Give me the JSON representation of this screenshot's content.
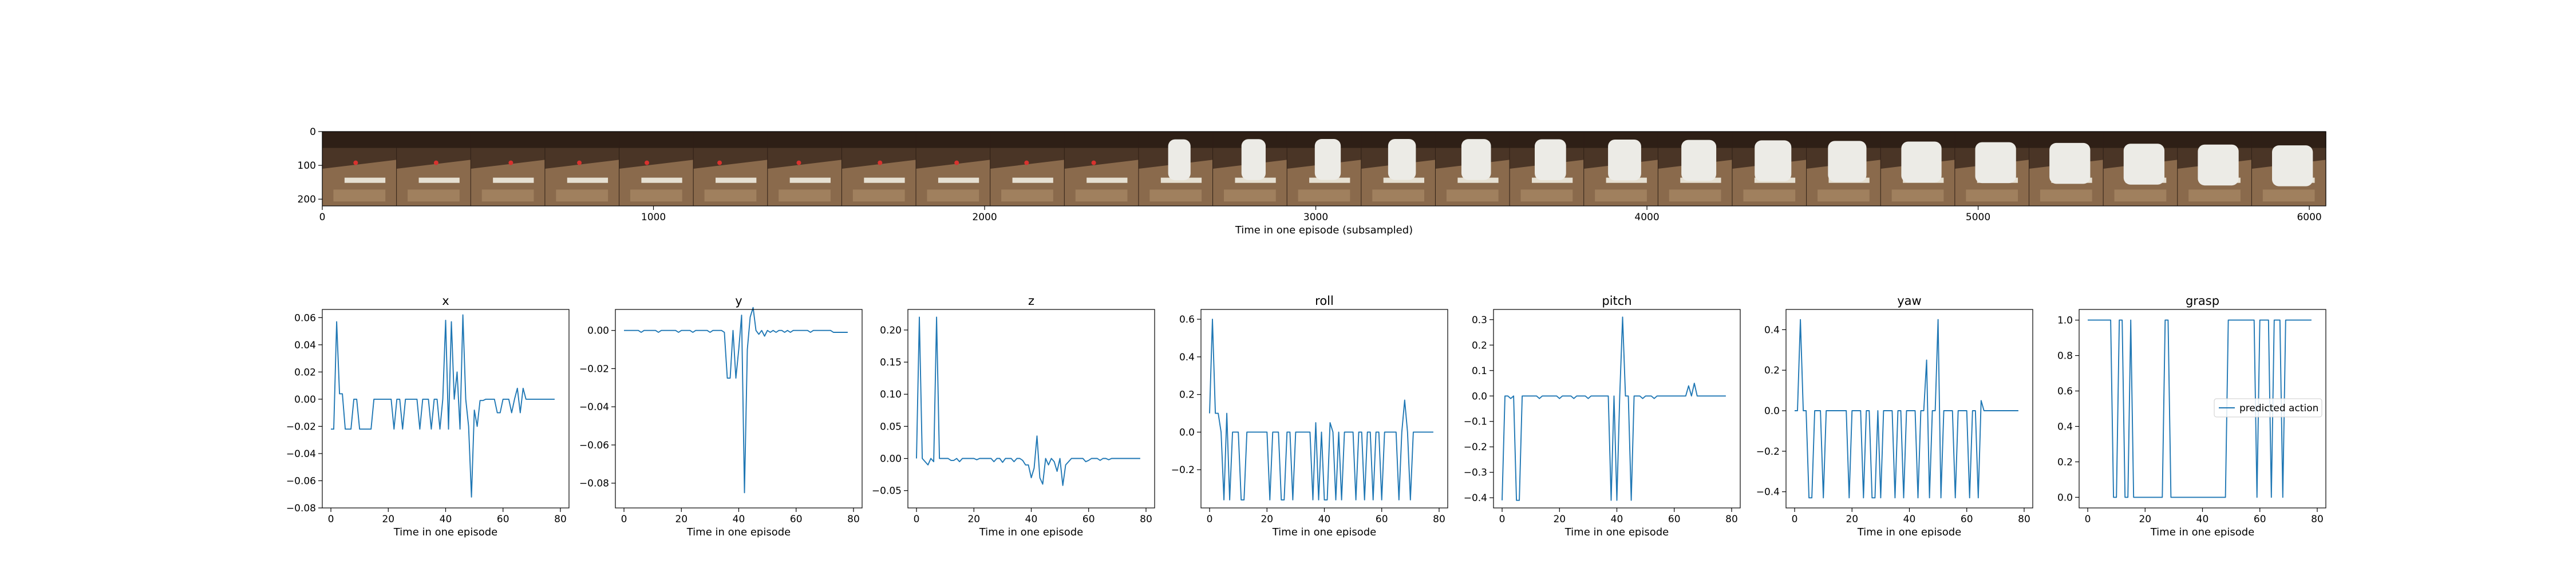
{
  "filmstrip": {
    "xlabel": "Time in one episode (subsampled)",
    "xticks": [
      0,
      1000,
      2000,
      3000,
      4000,
      5000,
      6000
    ],
    "yticks": [
      0,
      100,
      200
    ],
    "xlim": [
      0,
      6050
    ],
    "ylim": [
      0,
      220
    ],
    "frame_count": 27,
    "colors": {
      "wall": "#4a3526",
      "wall_dark": "#2e1f16",
      "floor": "#8a6a4c",
      "floor_light": "#a0805e",
      "tray": "#e6e0d2",
      "bottle": "#ecebe6",
      "marker": "#d8322e"
    }
  },
  "chart_data": [
    {
      "type": "line",
      "title": "x",
      "xlabel": "Time in one episode",
      "xlim": [
        -3,
        83
      ],
      "ylim": [
        -0.08,
        0.066
      ],
      "yticks": [
        0.06,
        0.04,
        0.02,
        0.0,
        -0.02,
        -0.04,
        -0.06,
        -0.08
      ],
      "ytick_labels": [
        "0.06",
        "0.04",
        "0.02",
        "0.00",
        "−0.02",
        "−0.04",
        "−0.06",
        "−0.08"
      ],
      "xticks": [
        0,
        20,
        40,
        60,
        80
      ],
      "series": [
        {
          "values": [
            -0.022,
            -0.022,
            0.057,
            0.004,
            0.004,
            -0.022,
            -0.022,
            -0.022,
            0.0,
            0.0,
            -0.022,
            -0.022,
            -0.022,
            -0.022,
            -0.022,
            0.0,
            0.0,
            0.0,
            0.0,
            0.0,
            0.0,
            0.0,
            -0.022,
            0.0,
            0.0,
            -0.022,
            0.0,
            0.0,
            0.0,
            0.0,
            0.0,
            -0.022,
            0.0,
            0.0,
            0.0,
            -0.022,
            0.0,
            0.0,
            -0.022,
            0.0,
            0.058,
            -0.022,
            0.057,
            0.0,
            0.02,
            -0.022,
            0.062,
            0.0,
            -0.02,
            -0.072,
            -0.008,
            -0.02,
            -0.001,
            -0.001,
            0.0,
            0.0,
            0.0,
            0.0,
            -0.01,
            -0.01,
            0.0,
            0.0,
            0.0,
            -0.01,
            0.0,
            0.008,
            -0.01,
            0.008,
            0.0,
            0.0,
            0.0,
            0.0,
            0.0,
            0.0,
            0.0,
            0.0,
            0.0,
            0.0,
            0.0
          ]
        }
      ]
    },
    {
      "type": "line",
      "title": "y",
      "xlabel": "Time in one episode",
      "xlim": [
        -3,
        83
      ],
      "ylim": [
        -0.093,
        0.011
      ],
      "yticks": [
        0.0,
        -0.02,
        -0.04,
        -0.06,
        -0.08
      ],
      "ytick_labels": [
        "0.00",
        "−0.02",
        "−0.04",
        "−0.06",
        "−0.08"
      ],
      "xticks": [
        0,
        20,
        40,
        60,
        80
      ],
      "series": [
        {
          "values": [
            0.0,
            0.0,
            0.0,
            0.0,
            0.0,
            0.0,
            -0.001,
            0.0,
            0.0,
            0.0,
            0.0,
            0.0,
            -0.001,
            0.0,
            0.0,
            0.0,
            0.0,
            0.0,
            0.0,
            -0.001,
            0.0,
            0.0,
            0.0,
            0.0,
            -0.001,
            0.0,
            0.0,
            0.0,
            0.0,
            0.0,
            -0.001,
            0.0,
            0.0,
            0.0,
            0.0,
            -0.001,
            -0.025,
            -0.025,
            0.0,
            -0.025,
            -0.01,
            0.008,
            -0.085,
            -0.01,
            0.007,
            0.012,
            0.0,
            -0.002,
            0.0,
            -0.003,
            0.0,
            -0.001,
            0.0,
            -0.001,
            0.0,
            0.0,
            -0.001,
            0.0,
            -0.001,
            0.0,
            0.0,
            0.0,
            0.0,
            0.0,
            0.0,
            -0.001,
            0.0,
            0.0,
            0.0,
            0.0,
            0.0,
            0.0,
            0.0,
            -0.001,
            -0.001,
            -0.001,
            -0.001,
            -0.001,
            -0.001
          ]
        }
      ]
    },
    {
      "type": "line",
      "title": "z",
      "xlabel": "Time in one episode",
      "xlim": [
        -3,
        83
      ],
      "ylim": [
        -0.077,
        0.232
      ],
      "yticks": [
        0.2,
        0.15,
        0.1,
        0.05,
        0.0,
        -0.05
      ],
      "ytick_labels": [
        "0.20",
        "0.15",
        "0.10",
        "0.05",
        "0.00",
        "−0.05"
      ],
      "xticks": [
        0,
        20,
        40,
        60,
        80
      ],
      "series": [
        {
          "values": [
            0.0,
            0.22,
            0.0,
            -0.005,
            -0.01,
            0.0,
            -0.005,
            0.22,
            0.0,
            0.0,
            0.0,
            0.0,
            -0.003,
            -0.003,
            0.0,
            -0.005,
            0.0,
            0.0,
            0.0,
            0.0,
            0.0,
            -0.002,
            0.0,
            0.0,
            0.0,
            0.0,
            0.0,
            -0.005,
            0.0,
            0.0,
            -0.006,
            0.0,
            0.0,
            0.0,
            -0.005,
            0.0,
            0.0,
            -0.003,
            -0.01,
            -0.01,
            -0.03,
            -0.015,
            0.035,
            -0.03,
            -0.04,
            0.0,
            -0.01,
            0.0,
            -0.005,
            -0.02,
            0.0,
            -0.042,
            -0.01,
            -0.005,
            0.0,
            0.0,
            0.0,
            0.0,
            0.0,
            -0.005,
            -0.003,
            0.0,
            0.0,
            0.0,
            -0.003,
            0.0,
            0.0,
            -0.002,
            0.0,
            0.0,
            0.0,
            0.0,
            0.0,
            0.0,
            0.0,
            0.0,
            0.0,
            0.0,
            0.0
          ]
        }
      ]
    },
    {
      "type": "line",
      "title": "roll",
      "xlabel": "Time in one episode",
      "xlim": [
        -3,
        83
      ],
      "ylim": [
        -0.403,
        0.652
      ],
      "yticks": [
        0.6,
        0.4,
        0.2,
        0.0,
        -0.2
      ],
      "ytick_labels": [
        "0.6",
        "0.4",
        "0.2",
        "0.0",
        "−0.2"
      ],
      "xticks": [
        0,
        20,
        40,
        60,
        80
      ],
      "series": [
        {
          "values": [
            0.1,
            0.6,
            0.1,
            0.1,
            0.0,
            -0.36,
            0.1,
            -0.36,
            0.0,
            0.0,
            0.0,
            -0.36,
            -0.36,
            0.0,
            0.0,
            0.0,
            0.0,
            0.0,
            0.0,
            0.0,
            0.0,
            -0.36,
            0.0,
            0.0,
            0.0,
            -0.36,
            -0.36,
            0.0,
            0.0,
            -0.36,
            0.0,
            0.0,
            0.0,
            0.0,
            0.0,
            0.0,
            -0.36,
            0.05,
            -0.36,
            0.0,
            -0.36,
            -0.36,
            0.05,
            0.0,
            -0.36,
            0.0,
            -0.36,
            0.0,
            0.0,
            0.0,
            0.0,
            -0.36,
            0.0,
            0.0,
            -0.36,
            0.0,
            0.0,
            -0.36,
            0.0,
            0.0,
            -0.36,
            0.0,
            0.0,
            0.0,
            0.0,
            0.0,
            -0.36,
            0.0,
            0.17,
            0.0,
            -0.36,
            0.0,
            0.0,
            0.0,
            0.0,
            0.0,
            0.0,
            0.0,
            0.0
          ]
        }
      ]
    },
    {
      "type": "line",
      "title": "pitch",
      "xlabel": "Time in one episode",
      "xlim": [
        -3,
        83
      ],
      "ylim": [
        -0.44,
        0.34
      ],
      "yticks": [
        0.3,
        0.2,
        0.1,
        0.0,
        -0.1,
        -0.2,
        -0.3,
        -0.4
      ],
      "ytick_labels": [
        "0.3",
        "0.2",
        "0.1",
        "0.0",
        "−0.1",
        "−0.2",
        "−0.3",
        "−0.4"
      ],
      "xticks": [
        0,
        20,
        40,
        60,
        80
      ],
      "series": [
        {
          "values": [
            -0.41,
            0.0,
            0.0,
            -0.01,
            0.0,
            -0.41,
            -0.41,
            0.0,
            0.0,
            0.0,
            0.0,
            0.0,
            0.0,
            -0.01,
            0.0,
            0.0,
            0.0,
            0.0,
            0.0,
            0.0,
            -0.01,
            0.0,
            0.0,
            0.0,
            0.0,
            -0.01,
            0.0,
            0.0,
            0.0,
            0.0,
            -0.01,
            0.0,
            0.0,
            0.0,
            0.0,
            0.0,
            0.0,
            0.0,
            -0.41,
            0.0,
            -0.41,
            0.0,
            0.31,
            0.0,
            0.0,
            -0.41,
            0.0,
            0.0,
            0.0,
            -0.01,
            0.0,
            0.0,
            0.0,
            -0.01,
            0.0,
            0.0,
            0.0,
            0.0,
            0.0,
            0.0,
            0.0,
            0.0,
            0.0,
            0.0,
            0.0,
            0.04,
            0.0,
            0.05,
            0.0,
            0.0,
            0.0,
            0.0,
            0.0,
            0.0,
            0.0,
            0.0,
            0.0,
            0.0,
            0.0
          ]
        }
      ]
    },
    {
      "type": "line",
      "title": "yaw",
      "xlabel": "Time in one episode",
      "xlim": [
        -3,
        83
      ],
      "ylim": [
        -0.48,
        0.5
      ],
      "yticks": [
        0.4,
        0.2,
        0.0,
        -0.2,
        -0.4
      ],
      "ytick_labels": [
        "0.4",
        "0.2",
        "0.0",
        "−0.2",
        "−0.4"
      ],
      "xticks": [
        0,
        20,
        40,
        60,
        80
      ],
      "series": [
        {
          "values": [
            0.0,
            0.0,
            0.45,
            0.0,
            0.0,
            -0.43,
            -0.43,
            0.0,
            0.0,
            0.0,
            -0.43,
            0.0,
            0.0,
            0.0,
            0.0,
            0.0,
            0.0,
            0.0,
            0.0,
            -0.43,
            0.0,
            0.0,
            0.0,
            0.0,
            -0.43,
            0.0,
            0.0,
            -0.43,
            -0.43,
            0.0,
            -0.43,
            0.0,
            0.0,
            0.0,
            0.0,
            -0.43,
            0.0,
            0.0,
            -0.43,
            0.0,
            0.0,
            0.0,
            0.0,
            -0.43,
            0.0,
            0.0,
            0.25,
            -0.43,
            0.0,
            0.0,
            0.45,
            -0.43,
            0.0,
            0.0,
            0.0,
            0.0,
            -0.43,
            0.0,
            0.0,
            0.0,
            0.0,
            -0.43,
            0.0,
            0.0,
            -0.43,
            0.05,
            0.0,
            0.0,
            0.0,
            0.0,
            0.0,
            0.0,
            0.0,
            0.0,
            0.0,
            0.0,
            0.0,
            0.0,
            0.0
          ]
        }
      ]
    },
    {
      "type": "line",
      "title": "grasp",
      "xlabel": "Time in one episode",
      "xlim": [
        -3,
        83
      ],
      "ylim": [
        -0.06,
        1.06
      ],
      "yticks": [
        1.0,
        0.8,
        0.6,
        0.4,
        0.2,
        0.0
      ],
      "ytick_labels": [
        "1.0",
        "0.8",
        "0.6",
        "0.4",
        "0.2",
        "0.0"
      ],
      "xticks": [
        0,
        20,
        40,
        60,
        80
      ],
      "series": [
        {
          "name": "predicted action",
          "values": [
            1.0,
            1.0,
            1.0,
            1.0,
            1.0,
            1.0,
            1.0,
            1.0,
            1.0,
            0.0,
            0.0,
            1.0,
            1.0,
            0.0,
            0.0,
            1.0,
            0.0,
            0.0,
            0.0,
            0.0,
            0.0,
            0.0,
            0.0,
            0.0,
            0.0,
            0.0,
            0.0,
            1.0,
            1.0,
            0.0,
            0.0,
            0.0,
            0.0,
            0.0,
            0.0,
            0.0,
            0.0,
            0.0,
            0.0,
            0.0,
            0.0,
            0.0,
            0.0,
            0.0,
            0.0,
            0.0,
            0.0,
            0.0,
            0.0,
            1.0,
            1.0,
            1.0,
            1.0,
            1.0,
            1.0,
            1.0,
            1.0,
            1.0,
            1.0,
            0.0,
            1.0,
            1.0,
            1.0,
            1.0,
            0.0,
            1.0,
            1.0,
            1.0,
            0.0,
            1.0,
            1.0,
            1.0,
            1.0,
            1.0,
            1.0,
            1.0,
            1.0,
            1.0,
            1.0
          ]
        }
      ],
      "legend": {
        "placement": "center-right"
      }
    }
  ],
  "style": {
    "line_color": "#1f77b4",
    "spine_color": "#000000"
  }
}
